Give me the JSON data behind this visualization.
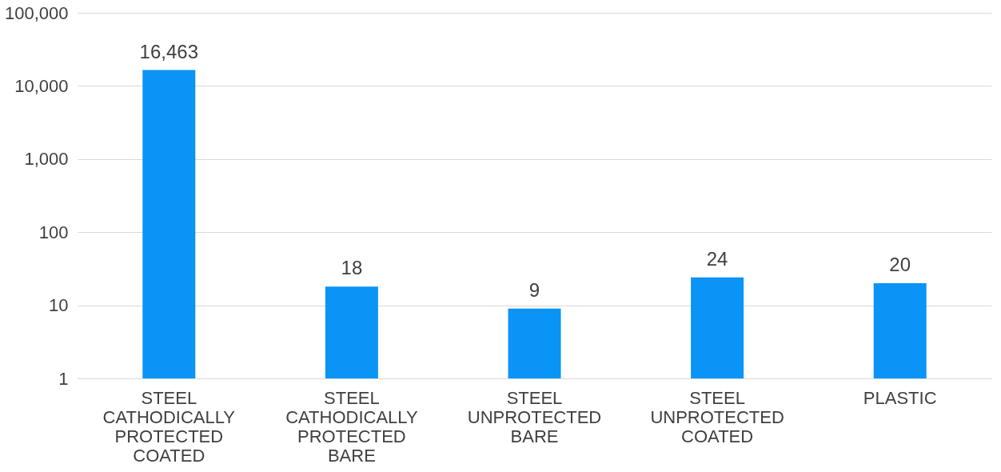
{
  "chart_data": {
    "type": "bar",
    "categories": [
      "STEEL CATHODICALLY PROTECTED COATED",
      "STEEL CATHODICALLY PROTECTED BARE",
      "STEEL UNPROTECTED BARE",
      "STEEL UNPROTECTED COATED",
      "PLASTIC"
    ],
    "values": [
      16463,
      18,
      9,
      24,
      20
    ],
    "value_labels": [
      "16,463",
      "18",
      "9",
      "24",
      "20"
    ],
    "color": "#0a94f5",
    "log": true,
    "ylim": [
      1,
      100000
    ],
    "yticks": [
      1,
      10,
      100,
      {
        "value": 1000,
        "label": "1,000"
      },
      {
        "value": 10000,
        "label": "10,000"
      },
      {
        "value": 100000,
        "label": "100,000"
      }
    ],
    "grid": "y"
  }
}
